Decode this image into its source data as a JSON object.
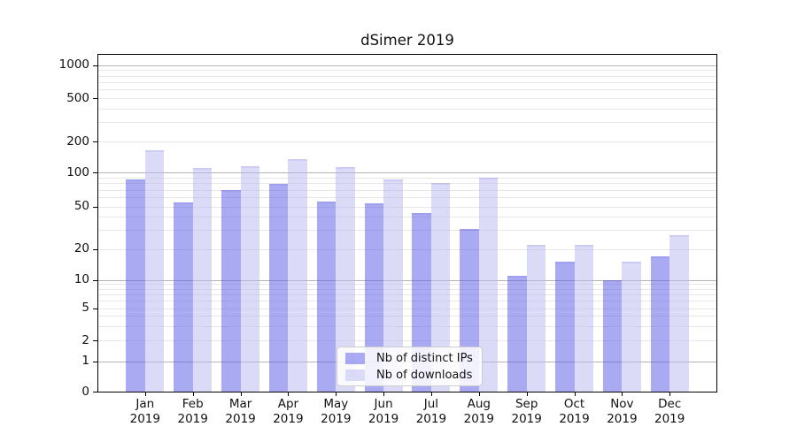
{
  "chart_data": {
    "type": "bar",
    "title": "dSimer 2019",
    "categories": [
      "Jan",
      "Feb",
      "Mar",
      "Apr",
      "May",
      "Jun",
      "Jul",
      "Aug",
      "Sep",
      "Oct",
      "Nov",
      "Dec"
    ],
    "year_line": "2019",
    "series": [
      {
        "name": "Nb of distinct IPs",
        "color": "rgba(85,85,231,0.5)",
        "values": [
          86,
          54,
          70,
          79,
          55,
          53,
          43,
          31,
          11,
          15,
          10,
          17
        ]
      },
      {
        "name": "Nb of downloads",
        "color": "rgba(183,183,241,0.5)",
        "values": [
          165,
          110,
          115,
          135,
          113,
          87,
          80,
          90,
          22,
          22,
          15,
          27
        ]
      }
    ],
    "xlabel": "",
    "ylabel": "",
    "yscale": "symlog",
    "ytick_labels": [
      "1000",
      "500",
      "200",
      "100",
      "50",
      "20",
      "10",
      "5",
      "2",
      "1",
      "0"
    ],
    "ytick_values": [
      1000,
      500,
      200,
      100,
      50,
      20,
      10,
      5,
      2,
      1,
      0
    ],
    "ylim": [
      0,
      1200
    ],
    "grid": true,
    "legend_position": "lower center"
  }
}
